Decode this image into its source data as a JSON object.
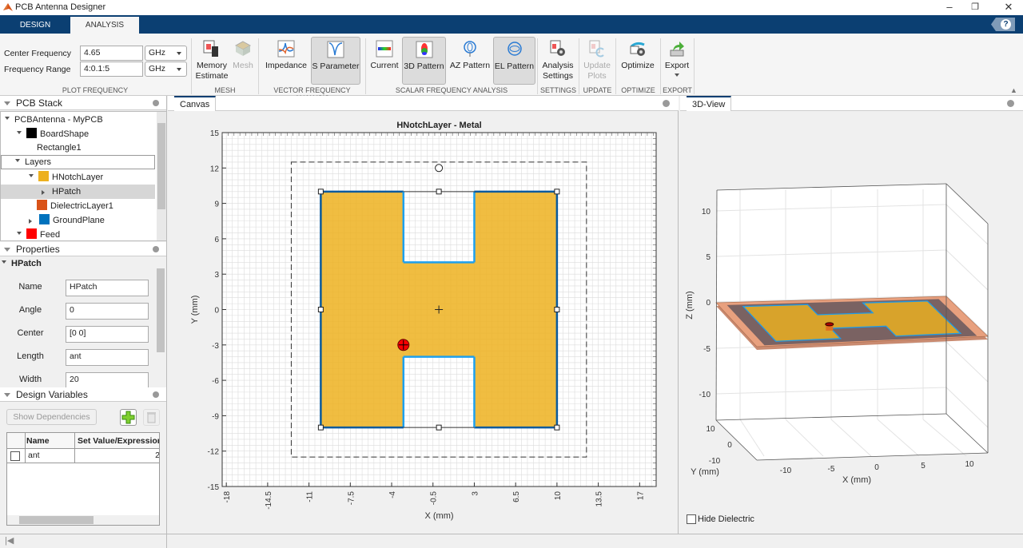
{
  "window": {
    "title": "PCB Antenna Designer",
    "controls": [
      "minimize-icon",
      "restore-icon",
      "close-icon"
    ]
  },
  "tabs": [
    {
      "label": "DESIGN",
      "active": false
    },
    {
      "label": "ANALYSIS",
      "active": true
    }
  ],
  "help_label": "?",
  "toolstrip": {
    "center_frequency": {
      "label": "Center Frequency",
      "value": "4.65",
      "unit": "GHz"
    },
    "frequency_range": {
      "label": "Frequency Range",
      "value": "4:0.1:5",
      "unit": "GHz"
    },
    "sections": [
      "PLOT FREQUENCY",
      "MESH",
      "VECTOR FREQUENCY ANALYSIS",
      "SCALAR FREQUENCY ANALYSIS",
      "SETTINGS",
      "UPDATE",
      "OPTIMIZE",
      "EXPORT"
    ],
    "buttons": {
      "memory_estimate": {
        "label1": "Memory",
        "label2": "Estimate"
      },
      "mesh": {
        "label1": "Mesh",
        "enabled": false
      },
      "impedance": {
        "label1": "Impedance"
      },
      "s_parameter": {
        "label1": "S Parameter",
        "pressed": true
      },
      "current": {
        "label1": "Current"
      },
      "pattern_3d": {
        "label1": "3D Pattern",
        "pressed": true
      },
      "az_pattern": {
        "label1": "AZ Pattern"
      },
      "el_pattern": {
        "label1": "EL Pattern",
        "pressed": true
      },
      "analysis_settings": {
        "label1": "Analysis",
        "label2": "Settings"
      },
      "update_plots": {
        "label1": "Update",
        "label2": "Plots",
        "enabled": false
      },
      "optimize": {
        "label1": "Optimize"
      },
      "export": {
        "label1": "Export"
      }
    }
  },
  "pcb_stack": {
    "title": "PCB Stack",
    "items": [
      {
        "label": "PCBAntenna - MyPCB"
      },
      {
        "label": "BoardShape",
        "color": "#000000"
      },
      {
        "label": "Rectangle1"
      },
      {
        "label": "Layers"
      },
      {
        "label": "HNotchLayer",
        "color": "#EDB120"
      },
      {
        "label": "HPatch",
        "selected": true
      },
      {
        "label": "DielectricLayer1",
        "color": "#D95319"
      },
      {
        "label": "GroundPlane",
        "color": "#0072BD"
      },
      {
        "label": "Feed",
        "color": "#FF0000"
      }
    ]
  },
  "properties": {
    "title": "Properties",
    "object": "HPatch",
    "fields": [
      {
        "label": "Name",
        "value": "HPatch"
      },
      {
        "label": "Angle",
        "value": "0"
      },
      {
        "label": "Center",
        "value": "[0 0]"
      },
      {
        "label": "Length",
        "value": "ant"
      },
      {
        "label": "Width",
        "value": "20"
      }
    ]
  },
  "design_variables": {
    "title": "Design Variables",
    "show_dependencies": "Show Dependencies",
    "columns": [
      "Name",
      "Set Value/Expression"
    ],
    "rows": [
      {
        "name": "ant",
        "value": "2"
      }
    ]
  },
  "canvas": {
    "tab": "Canvas",
    "chart_data": {
      "type": "shape-plot",
      "title": "HNotchLayer - Metal",
      "xlabel": "X (mm)",
      "ylabel": "Y (mm)",
      "xlim": [
        -18.35,
        18.4
      ],
      "ylim": [
        -15,
        15
      ],
      "xticks": [
        -18,
        -14.5,
        -11,
        -7.5,
        -4,
        -0.5,
        3,
        6.5,
        10,
        13.5,
        17
      ],
      "yticks": [
        15,
        12,
        9,
        6,
        3,
        0,
        -3,
        -6,
        -9,
        -12,
        -15
      ],
      "minor_grid": 0.5,
      "patch_outline": [
        [
          -10,
          10
        ],
        [
          -3,
          10
        ],
        [
          -3,
          4
        ],
        [
          3,
          4
        ],
        [
          3,
          10
        ],
        [
          10,
          10
        ],
        [
          10,
          -10
        ],
        [
          3,
          -10
        ],
        [
          3,
          -4
        ],
        [
          -3,
          -4
        ],
        [
          -3,
          -10
        ],
        [
          -10,
          -10
        ]
      ],
      "patch_color": "#EDB120",
      "edge_color": "#0072BD",
      "board": {
        "x": [
          -12.5,
          12.5
        ],
        "y": [
          -12.5,
          12.5
        ]
      },
      "feed": [
        -3,
        -3
      ],
      "feed_color": "#FF0000",
      "center": [
        0,
        0
      ],
      "rotate_handle": [
        0,
        12
      ]
    }
  },
  "view3d": {
    "tab": "3D-View",
    "xlabel": "X (mm)",
    "ylabel": "Y (mm)",
    "zlabel": "Z (mm)",
    "xticks": [
      "-10",
      "-5",
      "0",
      "5",
      "10"
    ],
    "yticks": [
      "10",
      "0",
      "-10"
    ],
    "zticks": [
      "10",
      "5",
      "0",
      "-5",
      "-10"
    ],
    "dielectric_color": "#E8A07E",
    "ground_color": "#7A6262",
    "hide_dielectric": {
      "label": "Hide Dielectric",
      "checked": false
    }
  }
}
